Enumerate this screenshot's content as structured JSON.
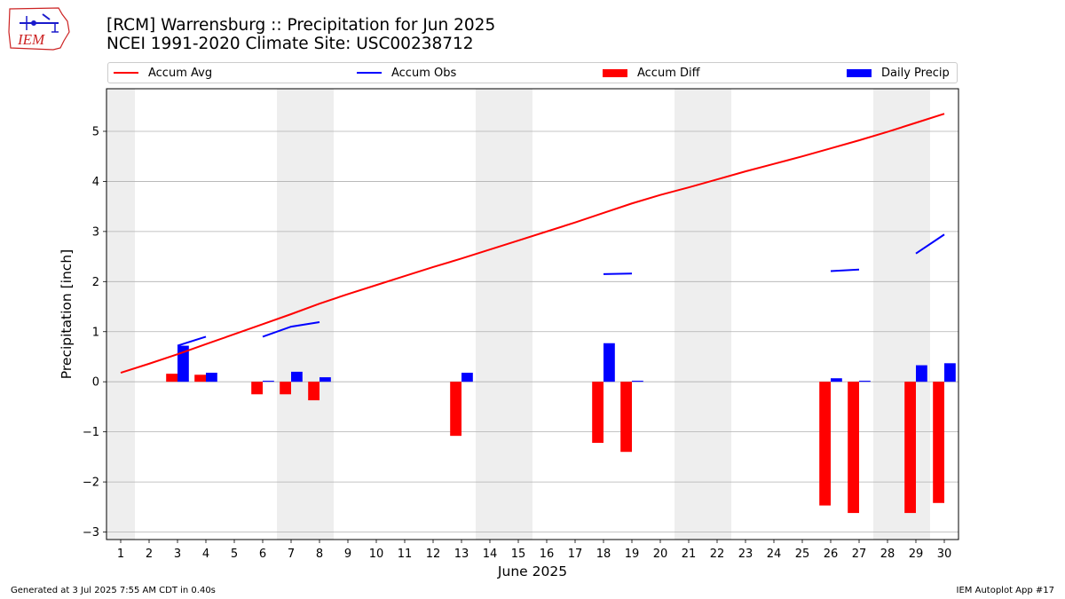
{
  "header": {
    "title_line1": "[RCM] Warrensburg :: Precipitation for Jun 2025",
    "title_line2": "NCEI 1991-2020 Climate Site: USC00238712",
    "logo_text": "IEM"
  },
  "legend": {
    "items": [
      {
        "label": "Accum Avg",
        "kind": "line",
        "color": "#ff0000"
      },
      {
        "label": "Accum Obs",
        "kind": "line",
        "color": "#0000ff"
      },
      {
        "label": "Accum Diff",
        "kind": "box",
        "color": "#ff0000"
      },
      {
        "label": "Daily Precip",
        "kind": "box",
        "color": "#0000ff"
      }
    ]
  },
  "footer": {
    "generated": "Generated at 3 Jul 2025 7:55 AM CDT in 0.40s",
    "app": "IEM Autoplot App #17"
  },
  "chart_data": {
    "type": "bar",
    "title": "[RCM] Warrensburg :: Precipitation for Jun 2025",
    "subtitle": "NCEI 1991-2020 Climate Site: USC00238712",
    "xlabel": "June 2025",
    "ylabel": "Precipitation [inch]",
    "categories": [
      1,
      2,
      3,
      4,
      5,
      6,
      7,
      8,
      9,
      10,
      11,
      12,
      13,
      14,
      15,
      16,
      17,
      18,
      19,
      20,
      21,
      22,
      23,
      24,
      25,
      26,
      27,
      28,
      29,
      30
    ],
    "xlim": [
      0.5,
      30.5
    ],
    "ylim": [
      -3.15,
      5.85
    ],
    "yticks": [
      -3,
      -2,
      -1,
      0,
      1,
      2,
      3,
      4,
      5
    ],
    "grid": "horizontal",
    "legend_position": "top",
    "weekend_shading": [
      [
        1,
        1
      ],
      [
        7,
        8
      ],
      [
        14,
        15
      ],
      [
        21,
        22
      ],
      [
        28,
        29
      ]
    ],
    "colors": {
      "avg": "#ff0000",
      "obs": "#0000ff",
      "diff": "#ff0000",
      "daily": "#0000ff",
      "weekend": "#eeeeee",
      "grid": "#b0b0b0"
    },
    "accum_avg": [
      0.18,
      0.36,
      0.55,
      0.75,
      0.95,
      1.15,
      1.35,
      1.56,
      1.75,
      1.93,
      2.11,
      2.29,
      2.46,
      2.64,
      2.82,
      3.0,
      3.18,
      3.37,
      3.56,
      3.73,
      3.88,
      4.04,
      4.2,
      4.35,
      4.5,
      4.66,
      4.82,
      4.99,
      5.17,
      5.35
    ],
    "accum_obs": [
      null,
      null,
      0.72,
      0.9,
      null,
      0.9,
      1.1,
      1.19,
      null,
      null,
      null,
      null,
      null,
      null,
      null,
      null,
      null,
      2.15,
      2.16,
      null,
      null,
      null,
      null,
      null,
      null,
      2.21,
      2.24,
      null,
      2.56,
      2.94
    ],
    "series": [
      {
        "name": "Accum Diff",
        "values": [
          0,
          0,
          0.16,
          0.14,
          0,
          -0.25,
          -0.25,
          -0.37,
          0,
          0,
          0,
          0,
          -1.08,
          0,
          0,
          0,
          0,
          -1.22,
          -1.4,
          0,
          0,
          0,
          0,
          0,
          0,
          -2.47,
          -2.62,
          0,
          -2.62,
          -2.42
        ]
      },
      {
        "name": "Daily Precip",
        "values": [
          0,
          0,
          0.72,
          0.18,
          0,
          0.02,
          0.2,
          0.09,
          0,
          0,
          0,
          0,
          0.18,
          0,
          0,
          0,
          0,
          0.77,
          0.02,
          0,
          0,
          0,
          0,
          0,
          0,
          0.07,
          0.02,
          0,
          0.33,
          0.37
        ]
      }
    ]
  }
}
